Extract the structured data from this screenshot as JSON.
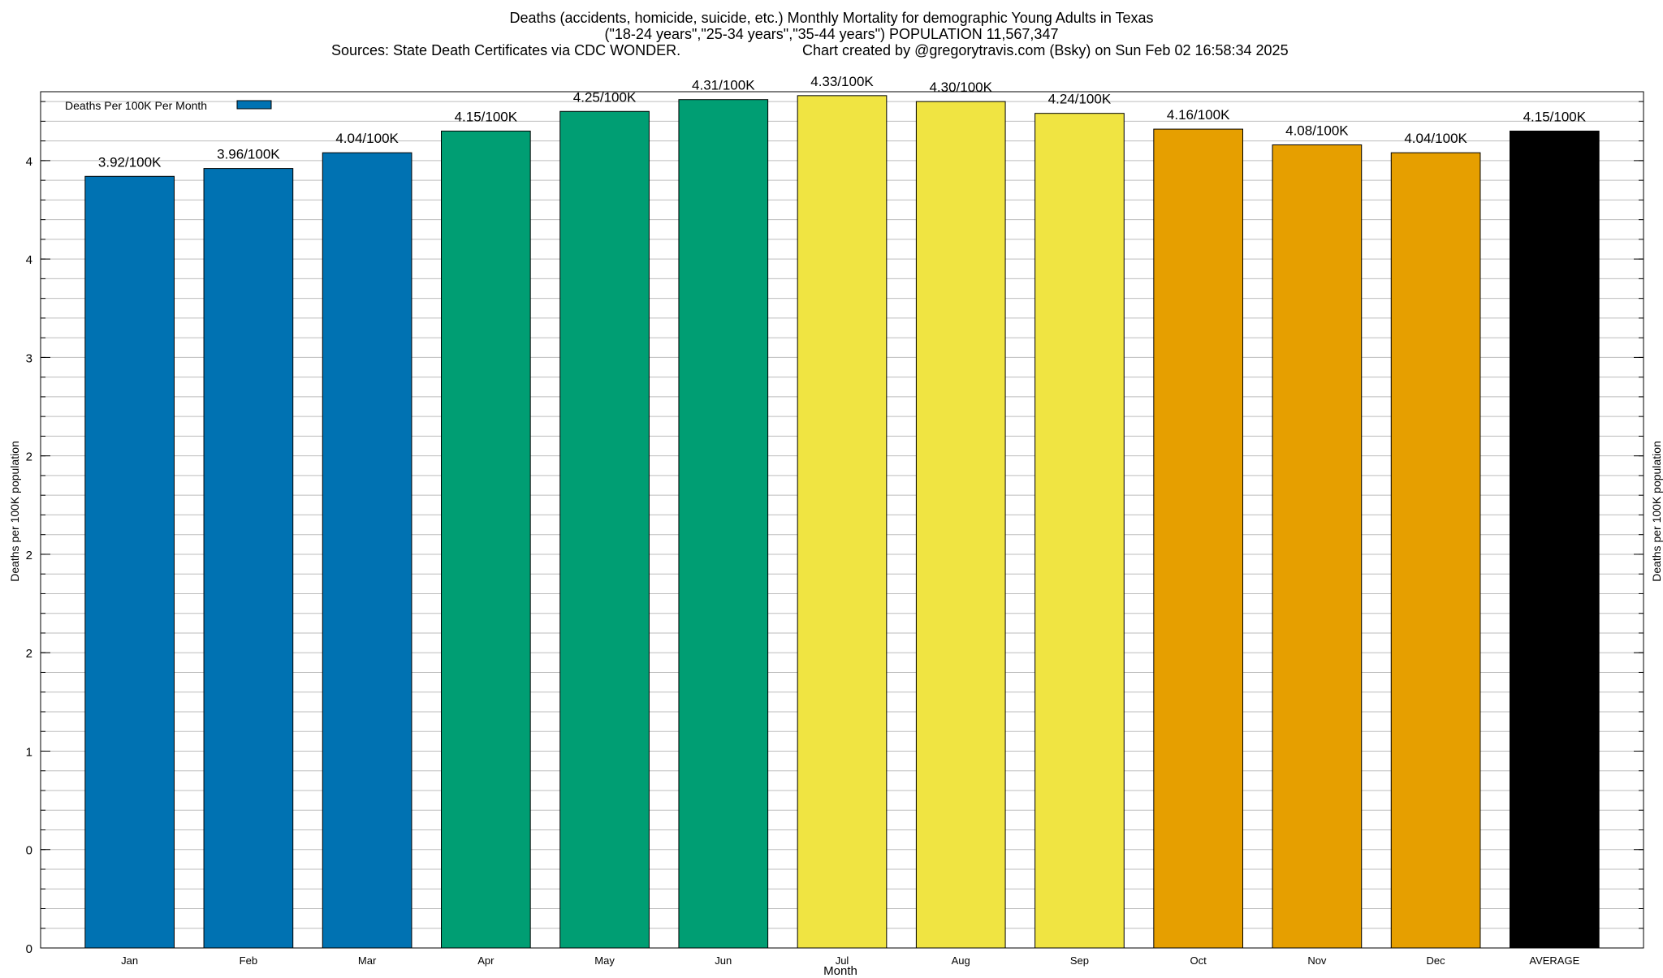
{
  "chart_data": {
    "type": "bar",
    "title": "Deaths (accidents, homicide, suicide, etc.) Monthly Mortality for demographic Young Adults in Texas",
    "subtitle": "(\"18-24 years\",\"25-34 years\",\"35-44 years\") POPULATION 11,567,347",
    "sources": "Sources: State Death Certificates via CDC WONDER.",
    "credit": "Chart created by @gregorytravis.com (Bsky) on Sun Feb 02 16:58:34 2025",
    "xlabel": "Month",
    "ylabel": "Deaths per 100K population",
    "ylabel_right": "Deaths per 100K population",
    "legend": {
      "label": "Deaths Per 100K Per Month",
      "color": "#0072b2",
      "position": "top-left"
    },
    "categories": [
      "Jan",
      "Feb",
      "Mar",
      "Apr",
      "May",
      "Jun",
      "Jul",
      "Aug",
      "Sep",
      "Oct",
      "Nov",
      "Dec",
      "AVERAGE"
    ],
    "values": [
      3.92,
      3.96,
      4.04,
      4.15,
      4.25,
      4.31,
      4.33,
      4.3,
      4.24,
      4.16,
      4.08,
      4.04,
      4.15
    ],
    "data_labels": [
      "3.92/100K",
      "3.96/100K",
      "4.04/100K",
      "4.15/100K",
      "4.25/100K",
      "4.31/100K",
      "4.33/100K",
      "4.30/100K",
      "4.24/100K",
      "4.16/100K",
      "4.08/100K",
      "4.04/100K",
      "4.15/100K"
    ],
    "colors": [
      "#0072b2",
      "#0072b2",
      "#0072b2",
      "#009e73",
      "#009e73",
      "#009e73",
      "#f0e442",
      "#f0e442",
      "#f0e442",
      "#e69f00",
      "#e69f00",
      "#e69f00",
      "#000000"
    ],
    "ylim": [
      0,
      4.35
    ],
    "yticks": [
      {
        "value": 0,
        "label": "0"
      },
      {
        "value": 0.5,
        "label": "0"
      },
      {
        "value": 1.0,
        "label": "1"
      },
      {
        "value": 1.5,
        "label": "2"
      },
      {
        "value": 2.0,
        "label": "2"
      },
      {
        "value": 2.5,
        "label": "2"
      },
      {
        "value": 3.0,
        "label": "3"
      },
      {
        "value": 3.5,
        "label": "4"
      },
      {
        "value": 4.0,
        "label": "4"
      }
    ],
    "minor_grid_step": 0.1,
    "grid": true
  }
}
